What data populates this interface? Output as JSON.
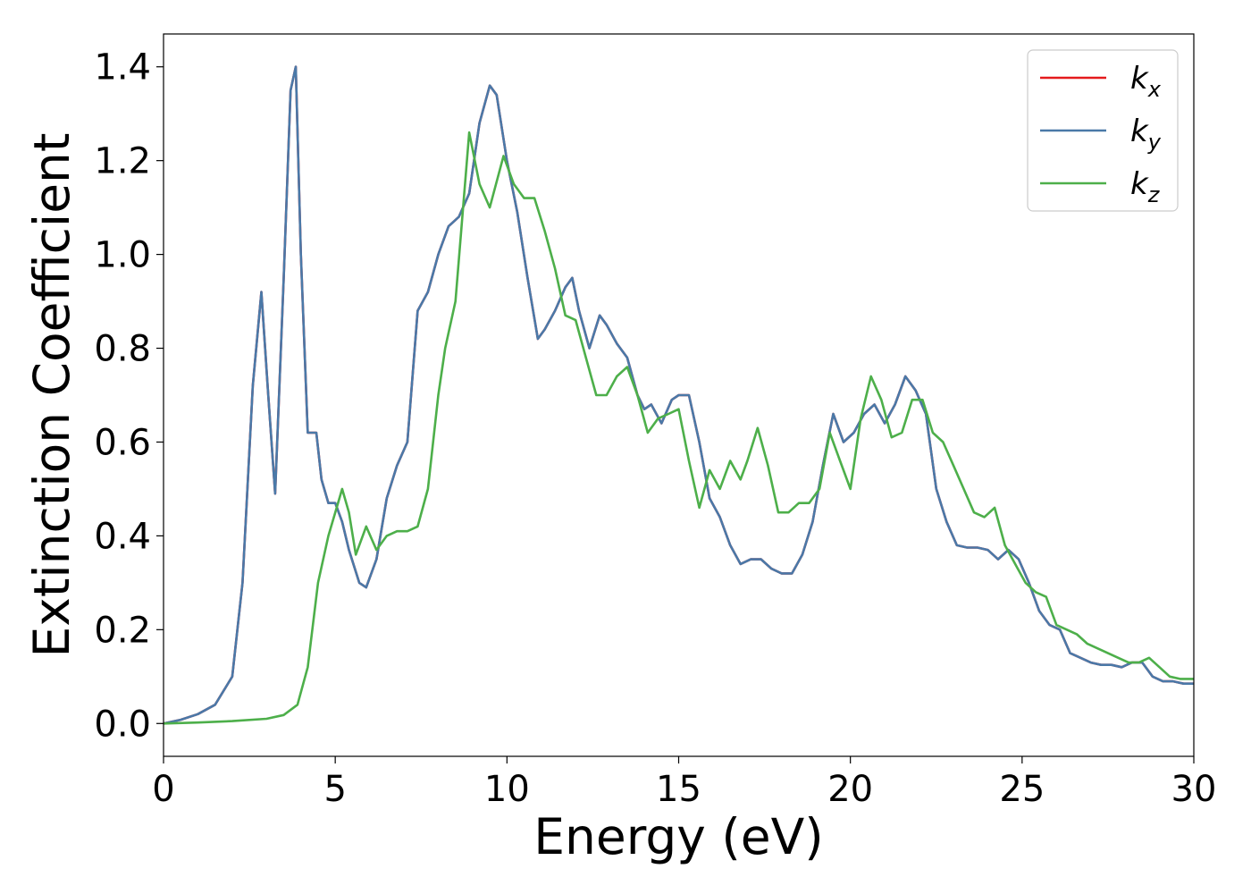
{
  "chart_data": {
    "type": "line",
    "title": "",
    "xlabel": "Energy (eV)",
    "ylabel": "Extinction Coefficient",
    "xlim": [
      0,
      30
    ],
    "ylim": [
      -0.07,
      1.47
    ],
    "xticks": [
      0,
      5,
      10,
      15,
      20,
      25,
      30
    ],
    "xtick_labels": [
      "0",
      "5",
      "10",
      "15",
      "20",
      "25",
      "30"
    ],
    "yticks": [
      0.0,
      0.2,
      0.4,
      0.6,
      0.8,
      1.0,
      1.2,
      1.4
    ],
    "ytick_labels": [
      "0.0",
      "0.2",
      "0.4",
      "0.6",
      "0.8",
      "1.0",
      "1.2",
      "1.4"
    ],
    "grid": false,
    "legend_position": "top-right",
    "series": [
      {
        "name": "k_x",
        "legend_base": "k",
        "legend_sub": "x",
        "color": "#e41a1c",
        "x": [
          0,
          0.5,
          1.0,
          1.5,
          2.0,
          2.3,
          2.6,
          2.85,
          3.05,
          3.25,
          3.5,
          3.7,
          3.85,
          4.0,
          4.2,
          4.45,
          4.6,
          4.8,
          5.0,
          5.2,
          5.4,
          5.7,
          5.9,
          6.2,
          6.5,
          6.8,
          7.1,
          7.4,
          7.7,
          8.0,
          8.3,
          8.6,
          8.9,
          9.2,
          9.5,
          9.7,
          10.0,
          10.3,
          10.6,
          10.9,
          11.1,
          11.4,
          11.7,
          11.9,
          12.1,
          12.4,
          12.7,
          12.9,
          13.2,
          13.5,
          13.8,
          14.0,
          14.2,
          14.5,
          14.8,
          15.0,
          15.3,
          15.6,
          15.9,
          16.2,
          16.5,
          16.8,
          17.1,
          17.4,
          17.7,
          18.0,
          18.3,
          18.6,
          18.9,
          19.2,
          19.5,
          19.8,
          20.1,
          20.4,
          20.7,
          21.0,
          21.3,
          21.6,
          21.9,
          22.2,
          22.5,
          22.8,
          23.1,
          23.4,
          23.7,
          24.0,
          24.3,
          24.6,
          24.9,
          25.2,
          25.5,
          25.8,
          26.1,
          26.4,
          26.7,
          27.0,
          27.3,
          27.6,
          27.9,
          28.2,
          28.5,
          28.8,
          29.1,
          29.4,
          29.7,
          30.0
        ],
        "values": [
          0.0,
          0.008,
          0.02,
          0.04,
          0.1,
          0.3,
          0.72,
          0.92,
          0.7,
          0.49,
          0.95,
          1.35,
          1.4,
          1.0,
          0.62,
          0.62,
          0.52,
          0.47,
          0.47,
          0.43,
          0.37,
          0.3,
          0.29,
          0.35,
          0.48,
          0.55,
          0.6,
          0.88,
          0.92,
          1.0,
          1.06,
          1.08,
          1.13,
          1.28,
          1.36,
          1.34,
          1.2,
          1.09,
          0.95,
          0.82,
          0.84,
          0.88,
          0.93,
          0.95,
          0.88,
          0.8,
          0.87,
          0.85,
          0.81,
          0.78,
          0.7,
          0.67,
          0.68,
          0.64,
          0.69,
          0.7,
          0.7,
          0.6,
          0.48,
          0.44,
          0.38,
          0.34,
          0.35,
          0.35,
          0.33,
          0.32,
          0.32,
          0.36,
          0.43,
          0.55,
          0.66,
          0.6,
          0.62,
          0.66,
          0.68,
          0.64,
          0.68,
          0.74,
          0.71,
          0.66,
          0.5,
          0.43,
          0.38,
          0.375,
          0.375,
          0.37,
          0.35,
          0.37,
          0.35,
          0.3,
          0.24,
          0.21,
          0.2,
          0.15,
          0.14,
          0.13,
          0.125,
          0.125,
          0.12,
          0.13,
          0.13,
          0.1,
          0.09,
          0.09,
          0.085,
          0.085
        ]
      },
      {
        "name": "k_y",
        "legend_base": "k",
        "legend_sub": "y",
        "color": "#4a79a8",
        "x": [
          0,
          0.5,
          1.0,
          1.5,
          2.0,
          2.3,
          2.6,
          2.85,
          3.05,
          3.25,
          3.5,
          3.7,
          3.85,
          4.0,
          4.2,
          4.45,
          4.6,
          4.8,
          5.0,
          5.2,
          5.4,
          5.7,
          5.9,
          6.2,
          6.5,
          6.8,
          7.1,
          7.4,
          7.7,
          8.0,
          8.3,
          8.6,
          8.9,
          9.2,
          9.5,
          9.7,
          10.0,
          10.3,
          10.6,
          10.9,
          11.1,
          11.4,
          11.7,
          11.9,
          12.1,
          12.4,
          12.7,
          12.9,
          13.2,
          13.5,
          13.8,
          14.0,
          14.2,
          14.5,
          14.8,
          15.0,
          15.3,
          15.6,
          15.9,
          16.2,
          16.5,
          16.8,
          17.1,
          17.4,
          17.7,
          18.0,
          18.3,
          18.6,
          18.9,
          19.2,
          19.5,
          19.8,
          20.1,
          20.4,
          20.7,
          21.0,
          21.3,
          21.6,
          21.9,
          22.2,
          22.5,
          22.8,
          23.1,
          23.4,
          23.7,
          24.0,
          24.3,
          24.6,
          24.9,
          25.2,
          25.5,
          25.8,
          26.1,
          26.4,
          26.7,
          27.0,
          27.3,
          27.6,
          27.9,
          28.2,
          28.5,
          28.8,
          29.1,
          29.4,
          29.7,
          30.0
        ],
        "values": [
          0.0,
          0.008,
          0.02,
          0.04,
          0.1,
          0.3,
          0.72,
          0.92,
          0.7,
          0.49,
          0.95,
          1.35,
          1.4,
          1.0,
          0.62,
          0.62,
          0.52,
          0.47,
          0.47,
          0.43,
          0.37,
          0.3,
          0.29,
          0.35,
          0.48,
          0.55,
          0.6,
          0.88,
          0.92,
          1.0,
          1.06,
          1.08,
          1.13,
          1.28,
          1.36,
          1.34,
          1.2,
          1.09,
          0.95,
          0.82,
          0.84,
          0.88,
          0.93,
          0.95,
          0.88,
          0.8,
          0.87,
          0.85,
          0.81,
          0.78,
          0.7,
          0.67,
          0.68,
          0.64,
          0.69,
          0.7,
          0.7,
          0.6,
          0.48,
          0.44,
          0.38,
          0.34,
          0.35,
          0.35,
          0.33,
          0.32,
          0.32,
          0.36,
          0.43,
          0.55,
          0.66,
          0.6,
          0.62,
          0.66,
          0.68,
          0.64,
          0.68,
          0.74,
          0.71,
          0.66,
          0.5,
          0.43,
          0.38,
          0.375,
          0.375,
          0.37,
          0.35,
          0.37,
          0.35,
          0.3,
          0.24,
          0.21,
          0.2,
          0.15,
          0.14,
          0.13,
          0.125,
          0.125,
          0.12,
          0.13,
          0.13,
          0.1,
          0.09,
          0.09,
          0.085,
          0.085
        ]
      },
      {
        "name": "k_z",
        "legend_base": "k",
        "legend_sub": "z",
        "color": "#4daf4a",
        "x": [
          0,
          1.0,
          2.0,
          3.0,
          3.5,
          3.9,
          4.2,
          4.5,
          4.8,
          5.0,
          5.2,
          5.4,
          5.6,
          5.9,
          6.2,
          6.5,
          6.8,
          7.1,
          7.4,
          7.7,
          8.0,
          8.2,
          8.5,
          8.9,
          9.2,
          9.5,
          9.9,
          10.2,
          10.5,
          10.8,
          11.1,
          11.4,
          11.7,
          12.0,
          12.3,
          12.6,
          12.9,
          13.2,
          13.5,
          13.8,
          14.1,
          14.4,
          14.7,
          15.0,
          15.3,
          15.6,
          15.9,
          16.2,
          16.5,
          16.8,
          17.0,
          17.3,
          17.6,
          17.9,
          18.2,
          18.5,
          18.8,
          19.1,
          19.4,
          19.7,
          20.0,
          20.3,
          20.6,
          20.9,
          21.2,
          21.5,
          21.8,
          22.1,
          22.4,
          22.7,
          23.0,
          23.3,
          23.6,
          23.9,
          24.2,
          24.5,
          24.8,
          25.1,
          25.4,
          25.7,
          26.0,
          26.3,
          26.6,
          26.9,
          27.2,
          27.5,
          27.8,
          28.1,
          28.4,
          28.7,
          29.0,
          29.3,
          29.6,
          30.0
        ],
        "values": [
          0.0,
          0.002,
          0.005,
          0.01,
          0.018,
          0.04,
          0.12,
          0.3,
          0.4,
          0.45,
          0.5,
          0.45,
          0.36,
          0.42,
          0.37,
          0.4,
          0.41,
          0.41,
          0.42,
          0.5,
          0.7,
          0.8,
          0.9,
          1.26,
          1.15,
          1.1,
          1.21,
          1.15,
          1.12,
          1.12,
          1.05,
          0.97,
          0.87,
          0.86,
          0.78,
          0.7,
          0.7,
          0.74,
          0.76,
          0.7,
          0.62,
          0.65,
          0.66,
          0.67,
          0.56,
          0.46,
          0.54,
          0.5,
          0.56,
          0.52,
          0.56,
          0.63,
          0.55,
          0.45,
          0.45,
          0.47,
          0.47,
          0.5,
          0.62,
          0.56,
          0.5,
          0.65,
          0.74,
          0.69,
          0.61,
          0.62,
          0.69,
          0.69,
          0.62,
          0.6,
          0.55,
          0.5,
          0.45,
          0.44,
          0.46,
          0.38,
          0.34,
          0.3,
          0.28,
          0.27,
          0.21,
          0.2,
          0.19,
          0.17,
          0.16,
          0.15,
          0.14,
          0.13,
          0.13,
          0.14,
          0.12,
          0.1,
          0.095,
          0.095
        ]
      }
    ]
  }
}
